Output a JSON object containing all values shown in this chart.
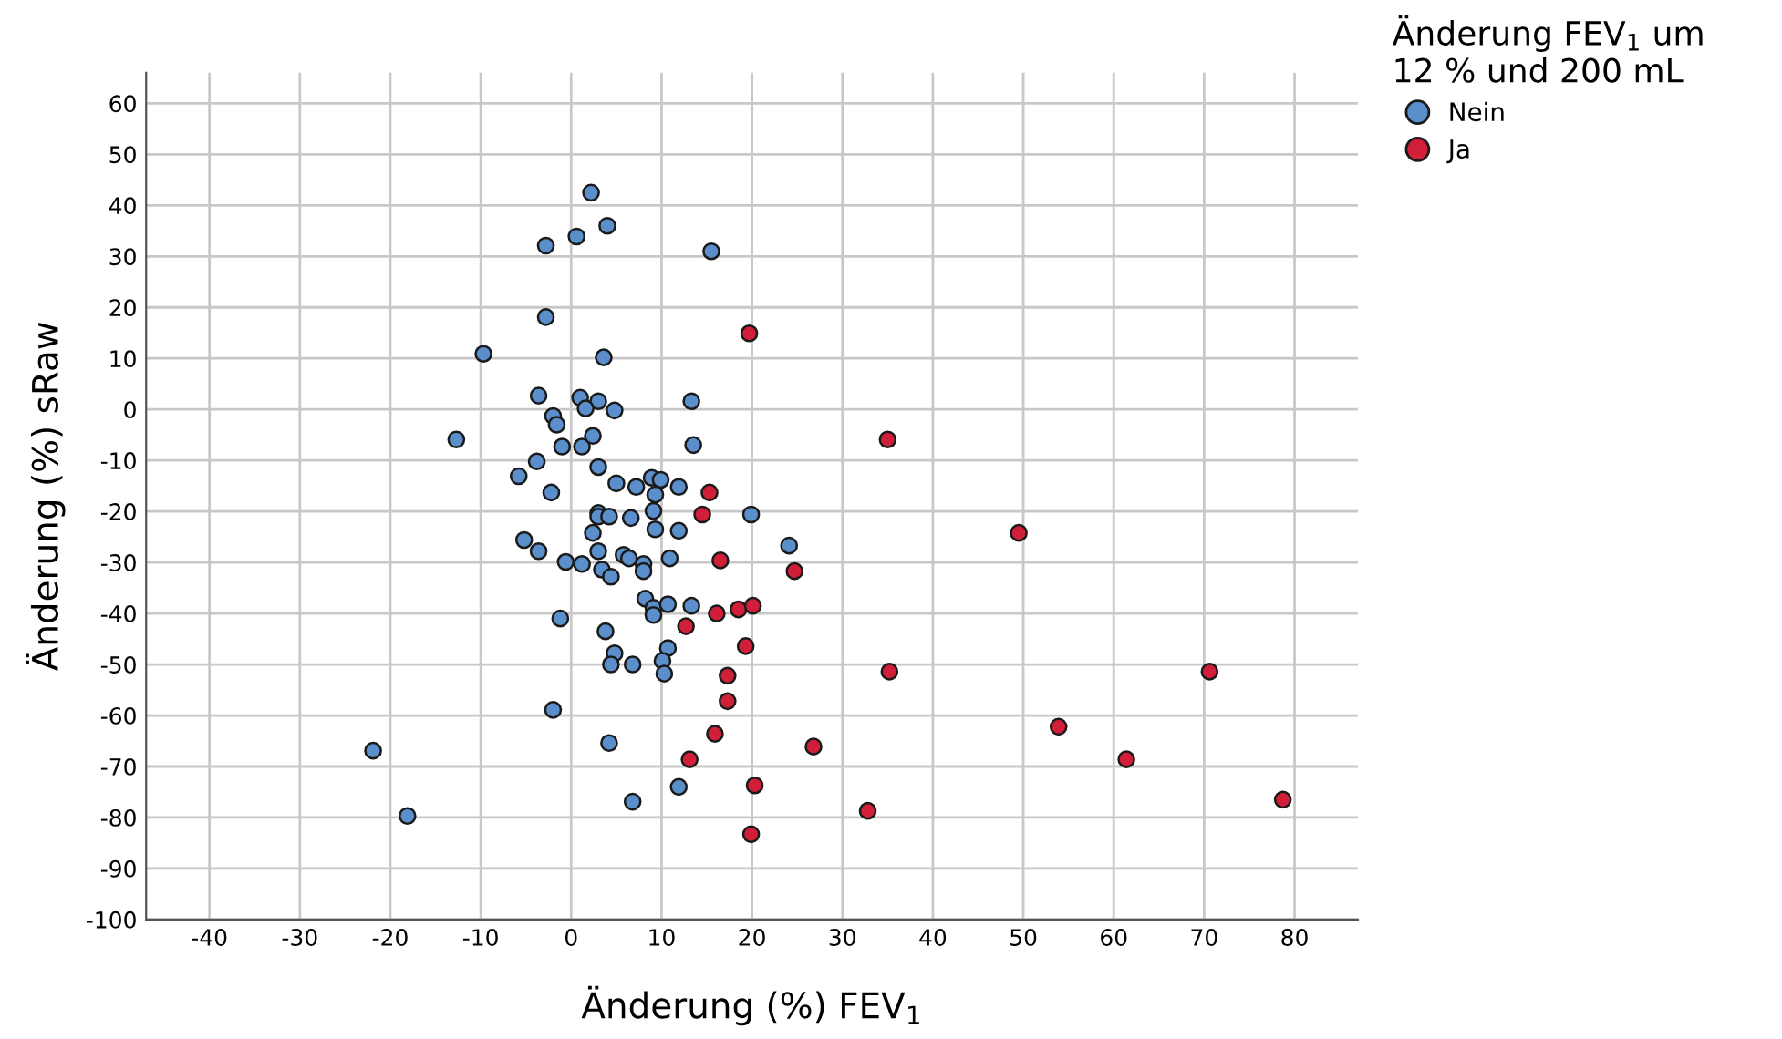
{
  "chart_data": {
    "type": "scatter",
    "xlabel": "Änderung (%) FEV$_{1}$",
    "ylabel": "Änderung (%) sRaw",
    "legend_title": "Änderung FEV$_{1}$ um\n12 % und 200 mL",
    "legend": "top right",
    "grid": true,
    "marker": "circle",
    "xlim": [
      -47,
      87
    ],
    "ylim": [
      -100,
      66
    ],
    "xticks": [
      -40,
      -30,
      -20,
      -10,
      0,
      10,
      20,
      30,
      40,
      50,
      60,
      70,
      80
    ],
    "yticks": [
      -100,
      -90,
      -80,
      -70,
      -60,
      -50,
      -40,
      -30,
      -20,
      -10,
      0,
      10,
      20,
      30,
      40,
      50,
      60
    ],
    "series": [
      {
        "name": "Nein",
        "color": "#5b8fcb",
        "x": [
          2.2,
          4.0,
          0.6,
          -2.8,
          15.5,
          -2.8,
          -9.7,
          3.6,
          1.0,
          3.0,
          1.6,
          4.8,
          -3.6,
          -2.0,
          -1.6,
          -12.7,
          -1.0,
          1.2,
          2.4,
          13.3,
          13.5,
          -3.8,
          -5.8,
          -2.2,
          3.0,
          5.0,
          7.2,
          8.9,
          9.9,
          9.3,
          11.9,
          19.9,
          9.1,
          3.0,
          3.0,
          4.2,
          6.6,
          9.3,
          11.9,
          2.4,
          -5.2,
          -3.6,
          -0.6,
          1.2,
          3.0,
          5.8,
          6.4,
          8.0,
          8.0,
          3.4,
          4.4,
          10.9,
          24.1,
          8.2,
          9.1,
          9.1,
          10.7,
          13.3,
          -1.2,
          3.8,
          4.8,
          4.4,
          6.8,
          10.7,
          10.1,
          10.3,
          -2.0,
          4.2,
          -21.9,
          -18.1,
          11.9,
          6.8
        ],
        "values": [
          42.5,
          36.0,
          33.9,
          32.1,
          31.0,
          18.1,
          10.9,
          10.2,
          2.3,
          1.6,
          0.2,
          -0.2,
          2.7,
          -1.3,
          -3.0,
          -5.9,
          -7.3,
          -7.3,
          -5.2,
          1.6,
          -7.0,
          -10.2,
          -13.1,
          -16.3,
          -11.3,
          -14.5,
          -15.2,
          -13.4,
          -13.8,
          -16.7,
          -15.2,
          -20.6,
          -19.9,
          -20.3,
          -21.0,
          -21.0,
          -21.3,
          -23.5,
          -23.8,
          -24.2,
          -25.6,
          -27.8,
          -29.9,
          -30.3,
          -27.8,
          -28.5,
          -29.2,
          -30.3,
          -31.7,
          -31.4,
          -32.8,
          -29.2,
          -26.7,
          -37.1,
          -38.9,
          -40.3,
          -38.2,
          -38.5,
          -41.0,
          -43.5,
          -47.8,
          -50.0,
          -50.0,
          -46.8,
          -49.3,
          -51.8,
          -58.9,
          -65.4,
          -66.9,
          -79.7,
          -74.0,
          -76.9
        ]
      },
      {
        "name": "Ja",
        "color": "#d11f3a",
        "x": [
          19.7,
          35.0,
          15.3,
          14.5,
          49.5,
          16.5,
          24.7,
          16.1,
          18.5,
          20.1,
          19.3,
          35.2,
          70.6,
          17.3,
          17.3,
          15.9,
          53.9,
          26.8,
          61.4,
          13.1,
          20.3,
          78.7,
          32.8,
          19.9,
          12.7
        ],
        "values": [
          14.9,
          -5.9,
          -16.3,
          -20.6,
          -24.2,
          -29.6,
          -31.7,
          -40.0,
          -39.2,
          -38.5,
          -46.4,
          -51.4,
          -51.4,
          -52.2,
          -57.2,
          -63.6,
          -62.2,
          -66.1,
          -68.6,
          -68.6,
          -73.7,
          -76.5,
          -78.7,
          -83.3,
          -42.5
        ]
      }
    ]
  }
}
